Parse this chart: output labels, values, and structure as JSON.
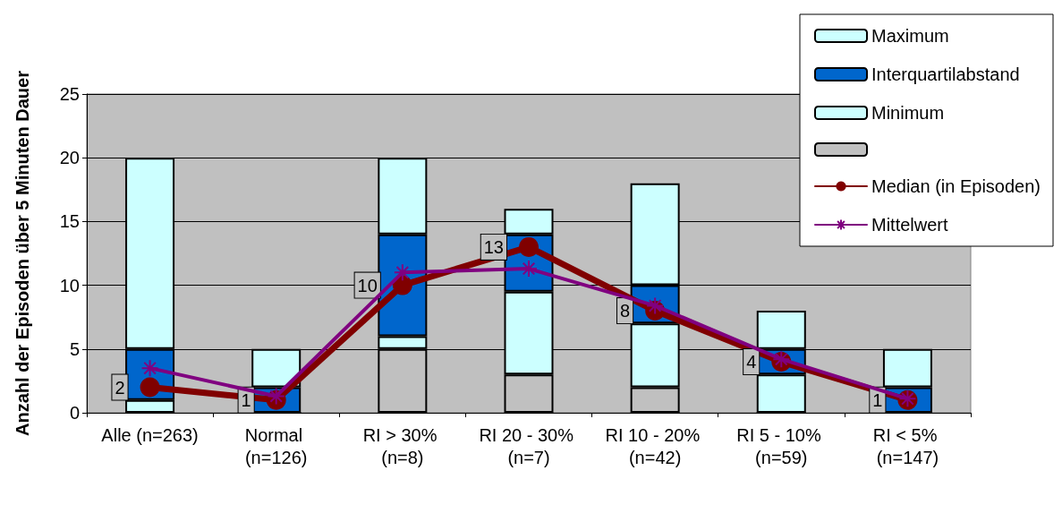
{
  "chart_data": {
    "type": "bar",
    "stacked": true,
    "ylabel": "Anzahl der Episoden über 5 Minuten Dauer",
    "categories": [
      "Alle (n=263)",
      "Normal (n=126)",
      "RI > 30% (n=8)",
      "RI 20 - 30% (n=7)",
      "RI 10 - 20% (n=42)",
      "RI 5 - 10% (n=59)",
      "RI < 5% (n=147)"
    ],
    "series": [
      {
        "color": "#c0c0c0",
        "values": [
          0,
          0,
          5,
          3,
          2,
          0,
          0
        ]
      },
      {
        "name": "Minimum",
        "color": "#ccffff",
        "values": [
          1,
          0,
          1,
          6.5,
          5,
          3,
          0
        ]
      },
      {
        "name": "Interquartilabstand",
        "color": "#0066cc",
        "values": [
          4,
          2,
          8,
          4.5,
          3,
          2,
          2
        ]
      },
      {
        "name": "Maximum",
        "color": "#ccffff",
        "values": [
          15,
          3,
          6,
          2,
          8,
          3,
          3
        ]
      },
      {
        "name": "Median (in Episoden)",
        "type": "line",
        "color": "#800000",
        "marker": "circle",
        "data_labels": true,
        "values": [
          2,
          1,
          10,
          13,
          8,
          4,
          1
        ]
      },
      {
        "name": "Mittelwert",
        "type": "line",
        "color": "#800080",
        "marker": "cross",
        "values": [
          3.5,
          1.3,
          11,
          11.3,
          8.4,
          4.2,
          1.1
        ]
      }
    ],
    "ylim": [
      0,
      25
    ],
    "yticks": [
      0,
      5,
      10,
      15,
      20,
      25
    ],
    "grid": "y",
    "legend": "top right"
  }
}
